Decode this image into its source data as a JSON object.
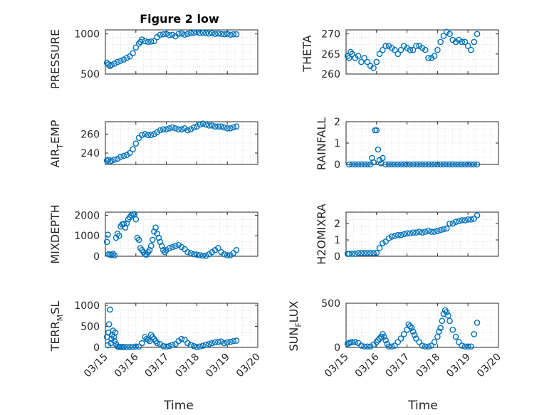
{
  "figure": {
    "title": "Figure 2 low"
  },
  "chart_data": [
    {
      "type": "scatter",
      "ylabel": "PRESSURE",
      "ylim": [
        500,
        1050
      ],
      "yticks": [
        500,
        1000
      ],
      "grid": true,
      "x": [
        15.05,
        15.1,
        15.15,
        15.2,
        15.3,
        15.4,
        15.5,
        15.6,
        15.7,
        15.8,
        15.9,
        16.0,
        16.1,
        16.15,
        16.2,
        16.3,
        16.4,
        16.5,
        16.6,
        16.7,
        16.8,
        16.9,
        17.0,
        17.1,
        17.2,
        17.3,
        17.4,
        17.5,
        17.6,
        17.7,
        17.8,
        17.9,
        18.0,
        18.1,
        18.2,
        18.3,
        18.4,
        18.5,
        18.6,
        18.7,
        18.8,
        18.9,
        19.0,
        19.1,
        19.2,
        19.3
      ],
      "y": [
        640,
        620,
        600,
        615,
        630,
        650,
        665,
        680,
        700,
        720,
        760,
        830,
        880,
        900,
        930,
        910,
        900,
        905,
        910,
        960,
        990,
        995,
        1000,
        985,
        990,
        970,
        1000,
        1005,
        990,
        1000,
        1010,
        1015,
        1020,
        1010,
        1015,
        1010,
        1005,
        1010,
        1000,
        1005,
        1000,
        995,
        1000,
        990,
        995,
        995
      ],
      "marker": "open-circle",
      "color": "#0072BD"
    },
    {
      "type": "scatter",
      "ylabel": "THETA",
      "ylim": [
        260,
        271
      ],
      "yticks": [
        260,
        265,
        270
      ],
      "grid": true,
      "x": [
        15.05,
        15.1,
        15.15,
        15.2,
        15.3,
        15.4,
        15.5,
        15.6,
        15.7,
        15.8,
        15.9,
        16.0,
        16.1,
        16.2,
        16.3,
        16.4,
        16.5,
        16.6,
        16.7,
        16.8,
        16.9,
        17.0,
        17.1,
        17.2,
        17.3,
        17.4,
        17.5,
        17.6,
        17.7,
        17.8,
        17.9,
        18.0,
        18.1,
        18.2,
        18.3,
        18.4,
        18.5,
        18.6,
        18.7,
        18.8,
        18.9,
        19.0,
        19.1,
        19.2,
        19.3
      ],
      "y": [
        264.5,
        264.0,
        265.5,
        265.0,
        264.0,
        264.5,
        263.0,
        264.0,
        263.0,
        262.0,
        261.5,
        263.0,
        265.0,
        266.0,
        267.0,
        267.0,
        266.5,
        266.0,
        265.0,
        266.0,
        267.0,
        266.5,
        266.0,
        266.0,
        267.0,
        267.0,
        266.5,
        266.0,
        264.0,
        264.0,
        264.5,
        266.0,
        268.0,
        269.5,
        270.5,
        270.0,
        268.5,
        268.0,
        268.5,
        268.0,
        268.0,
        267.0,
        266.0,
        268.0,
        270.0
      ],
      "marker": "open-circle",
      "color": "#0072BD"
    },
    {
      "type": "scatter",
      "ylabel": "AIR_TEMP",
      "ylim": [
        228,
        273
      ],
      "yticks": [
        240,
        260
      ],
      "grid": true,
      "x": [
        15.05,
        15.1,
        15.15,
        15.2,
        15.3,
        15.4,
        15.5,
        15.6,
        15.7,
        15.8,
        15.9,
        16.0,
        16.1,
        16.2,
        16.3,
        16.4,
        16.5,
        16.6,
        16.7,
        16.8,
        16.9,
        17.0,
        17.1,
        17.2,
        17.3,
        17.4,
        17.5,
        17.6,
        17.7,
        17.8,
        17.9,
        18.0,
        18.1,
        18.2,
        18.3,
        18.4,
        18.5,
        18.6,
        18.7,
        18.8,
        18.9,
        19.0,
        19.1,
        19.2,
        19.3
      ],
      "y": [
        232,
        233,
        231,
        232,
        233,
        234,
        236,
        237,
        238,
        240,
        244,
        250,
        256,
        259,
        260,
        259,
        259,
        260,
        262,
        264,
        265,
        265,
        266,
        267,
        266,
        265,
        265,
        266,
        264,
        265,
        267,
        268,
        270,
        271,
        270,
        269,
        269,
        268,
        268,
        268,
        267,
        266,
        266,
        267,
        268
      ],
      "marker": "open-circle",
      "color": "#0072BD"
    },
    {
      "type": "scatter",
      "ylabel": "RAINFALL",
      "ylim": [
        0,
        2
      ],
      "yticks": [
        0,
        1,
        2
      ],
      "grid": true,
      "x": [
        15.1,
        15.2,
        15.3,
        15.4,
        15.5,
        15.6,
        15.7,
        15.8,
        15.85,
        15.9,
        15.95,
        16.0,
        16.05,
        16.1,
        16.15,
        16.2,
        16.3,
        16.4,
        16.5,
        16.6,
        16.7,
        16.8,
        16.9,
        17.0,
        17.1,
        17.2,
        17.3,
        17.4,
        17.5,
        17.6,
        17.7,
        17.8,
        17.9,
        18.0,
        18.1,
        18.2,
        18.3,
        18.4,
        18.5,
        18.6,
        18.7,
        18.8,
        18.9,
        19.0,
        19.1,
        19.2,
        19.3
      ],
      "y": [
        0,
        0,
        0,
        0,
        0,
        0,
        0,
        0,
        0.3,
        0.1,
        1.6,
        1.6,
        0.7,
        0.2,
        0.05,
        0.3,
        0,
        0,
        0,
        0,
        0,
        0,
        0,
        0,
        0,
        0,
        0,
        0,
        0,
        0,
        0,
        0,
        0,
        0,
        0,
        0,
        0,
        0,
        0,
        0,
        0,
        0,
        0,
        0,
        0,
        0,
        0
      ],
      "marker": "open-circle",
      "color": "#0072BD"
    },
    {
      "type": "scatter",
      "ylabel": "MIXDEPTH",
      "ylim": [
        0,
        2150
      ],
      "yticks": [
        0,
        1000,
        2000
      ],
      "grid": true,
      "x": [
        15.05,
        15.08,
        15.1,
        15.15,
        15.2,
        15.25,
        15.3,
        15.35,
        15.4,
        15.45,
        15.5,
        15.55,
        15.6,
        15.65,
        15.7,
        15.75,
        15.8,
        15.85,
        15.9,
        15.95,
        16.0,
        16.05,
        16.1,
        16.15,
        16.2,
        16.25,
        16.3,
        16.35,
        16.4,
        16.45,
        16.5,
        16.55,
        16.6,
        16.65,
        16.7,
        16.75,
        16.8,
        16.85,
        16.9,
        16.95,
        17.0,
        17.1,
        17.2,
        17.3,
        17.4,
        17.5,
        17.6,
        17.7,
        17.8,
        17.9,
        18.0,
        18.1,
        18.2,
        18.3,
        18.4,
        18.5,
        18.6,
        18.7,
        18.8,
        18.9,
        19.0,
        19.1,
        19.2,
        19.3
      ],
      "y": [
        700,
        1050,
        100,
        80,
        60,
        120,
        50,
        900,
        1100,
        1000,
        1450,
        1550,
        1580,
        1400,
        1600,
        1800,
        1900,
        2000,
        2050,
        2050,
        1800,
        900,
        800,
        400,
        300,
        200,
        100,
        80,
        200,
        300,
        500,
        800,
        1200,
        1400,
        1100,
        900,
        700,
        500,
        300,
        200,
        300,
        400,
        450,
        500,
        550,
        450,
        350,
        200,
        150,
        100,
        80,
        50,
        30,
        20,
        100,
        200,
        300,
        400,
        200,
        100,
        50,
        50,
        150,
        300
      ],
      "marker": "open-circle",
      "color": "#0072BD"
    },
    {
      "type": "scatter",
      "ylabel": "H2OMIXRA",
      "ylim": [
        0,
        2.7
      ],
      "yticks": [
        0,
        1,
        2
      ],
      "grid": true,
      "x": [
        15.05,
        15.1,
        15.2,
        15.3,
        15.4,
        15.5,
        15.6,
        15.7,
        15.8,
        15.9,
        16.0,
        16.1,
        16.2,
        16.3,
        16.4,
        16.5,
        16.6,
        16.7,
        16.8,
        16.9,
        17.0,
        17.1,
        17.2,
        17.3,
        17.4,
        17.5,
        17.6,
        17.7,
        17.8,
        17.9,
        18.0,
        18.1,
        18.2,
        18.3,
        18.4,
        18.5,
        18.6,
        18.7,
        18.8,
        18.9,
        19.0,
        19.1,
        19.2,
        19.3
      ],
      "y": [
        0.15,
        0.15,
        0.15,
        0.15,
        0.2,
        0.2,
        0.2,
        0.2,
        0.2,
        0.2,
        0.2,
        0.5,
        0.8,
        0.9,
        1.1,
        1.2,
        1.25,
        1.3,
        1.3,
        1.35,
        1.4,
        1.4,
        1.45,
        1.45,
        1.5,
        1.45,
        1.5,
        1.55,
        1.5,
        1.5,
        1.55,
        1.6,
        1.65,
        1.7,
        2.0,
        2.0,
        2.1,
        2.15,
        2.2,
        2.2,
        2.25,
        2.25,
        2.3,
        2.5
      ],
      "marker": "open-circle",
      "color": "#0072BD"
    },
    {
      "type": "scatter",
      "ylabel": "TERR_MSL",
      "ylim": [
        0,
        1050
      ],
      "yticks": [
        0,
        500,
        1000
      ],
      "grid": true,
      "x": [
        15.05,
        15.08,
        15.1,
        15.12,
        15.15,
        15.18,
        15.2,
        15.22,
        15.25,
        15.28,
        15.3,
        15.32,
        15.35,
        15.4,
        15.45,
        15.5,
        15.55,
        15.6,
        15.7,
        15.8,
        15.9,
        16.0,
        16.1,
        16.2,
        16.3,
        16.35,
        16.4,
        16.45,
        16.5,
        16.55,
        16.6,
        16.65,
        16.7,
        16.8,
        16.9,
        17.0,
        17.1,
        17.2,
        17.3,
        17.4,
        17.5,
        17.6,
        17.7,
        17.8,
        17.9,
        18.0,
        18.1,
        18.2,
        18.3,
        18.4,
        18.5,
        18.6,
        18.7,
        18.8,
        18.9,
        19.0,
        19.1,
        19.2,
        19.3
      ],
      "y": [
        250,
        50,
        350,
        550,
        900,
        100,
        200,
        300,
        400,
        250,
        150,
        350,
        80,
        20,
        10,
        10,
        10,
        10,
        10,
        10,
        10,
        20,
        20,
        100,
        250,
        200,
        180,
        150,
        300,
        250,
        200,
        150,
        100,
        80,
        30,
        20,
        30,
        60,
        80,
        150,
        200,
        180,
        100,
        60,
        30,
        10,
        20,
        40,
        60,
        80,
        100,
        120,
        130,
        140,
        100,
        120,
        130,
        150,
        160
      ],
      "marker": "open-circle",
      "color": "#0072BD"
    },
    {
      "type": "scatter",
      "ylabel": "SUN_FLUX",
      "ylim": [
        0,
        500
      ],
      "yticks": [
        0,
        500
      ],
      "grid": true,
      "x": [
        15.05,
        15.1,
        15.15,
        15.2,
        15.3,
        15.4,
        15.5,
        15.6,
        15.7,
        15.8,
        15.9,
        16.0,
        16.05,
        16.1,
        16.15,
        16.2,
        16.25,
        16.3,
        16.35,
        16.4,
        16.5,
        16.6,
        16.7,
        16.8,
        16.9,
        17.0,
        17.05,
        17.1,
        17.15,
        17.2,
        17.25,
        17.3,
        17.4,
        17.5,
        17.6,
        17.7,
        17.8,
        17.9,
        18.0,
        18.05,
        18.1,
        18.15,
        18.2,
        18.25,
        18.3,
        18.35,
        18.4,
        18.5,
        18.6,
        18.7,
        18.8,
        18.9,
        19.0,
        19.1,
        19.2,
        19.3
      ],
      "y": [
        40,
        50,
        55,
        60,
        60,
        50,
        20,
        10,
        10,
        10,
        30,
        60,
        80,
        100,
        120,
        150,
        120,
        80,
        40,
        10,
        10,
        20,
        60,
        100,
        150,
        200,
        260,
        240,
        220,
        180,
        140,
        100,
        60,
        20,
        10,
        10,
        20,
        60,
        120,
        180,
        220,
        300,
        380,
        420,
        400,
        360,
        300,
        200,
        120,
        60,
        20,
        10,
        10,
        10,
        150,
        280
      ],
      "marker": "open-circle",
      "color": "#0072BD"
    }
  ],
  "axes": {
    "xlim": [
      15,
      20
    ],
    "xticks": [
      15,
      16,
      17,
      18,
      19,
      20
    ],
    "xtick_labels": [
      "03/15",
      "03/16",
      "03/17",
      "03/18",
      "03/19",
      "03/20"
    ],
    "xlabel": "Time"
  },
  "labels": {
    "pressure": "PRESSURE",
    "theta": "THETA",
    "rainfall": "RAINFALL",
    "mixdepth": "MIXDEPTH",
    "h2omixra": "H2OMIXRA",
    "air_main": "AIR",
    "air_sub": "T",
    "air_tail": "EMP",
    "terr_main": "TERR",
    "terr_sub": "M",
    "terr_tail": "SL",
    "sun_main": "SUN",
    "sun_sub": "F",
    "sun_tail": "LUX"
  }
}
